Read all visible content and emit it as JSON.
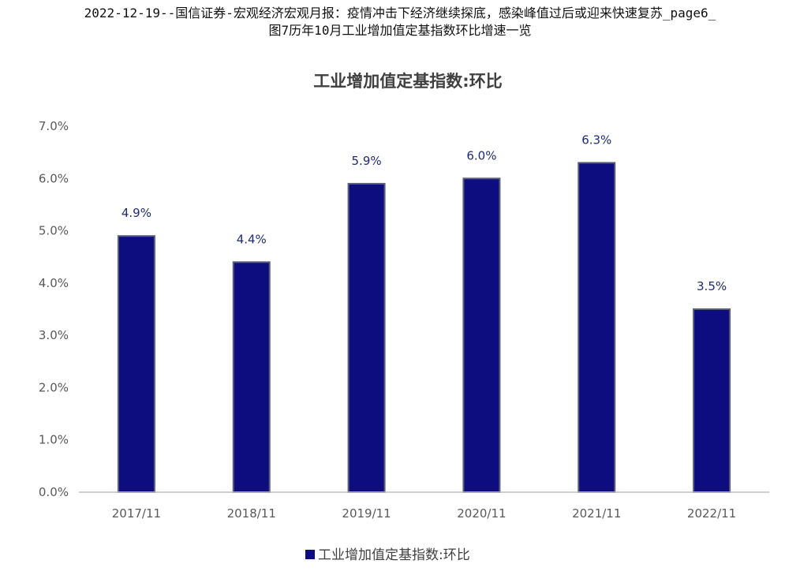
{
  "caption": {
    "line1": "2022-12-19--国信证券-宏观经济宏观月报：疫情冲击下经济继续探底，感染峰值过后或迎来快速复苏_page6_",
    "line2": "图7历年10月工业增加值定基指数环比增速一览"
  },
  "chart_data": {
    "type": "bar",
    "title": "工业增加值定基指数:环比",
    "categories": [
      "2017/11",
      "2018/11",
      "2019/11",
      "2020/11",
      "2021/11",
      "2022/11"
    ],
    "series": [
      {
        "name": "工业增加值定基指数:环比",
        "values": [
          4.9,
          4.4,
          5.9,
          6.0,
          6.3,
          3.5
        ],
        "labels": [
          "4.9%",
          "4.4%",
          "5.9%",
          "6.0%",
          "6.3%",
          "3.5%"
        ]
      }
    ],
    "yticks": [
      "0.0%",
      "1.0%",
      "2.0%",
      "3.0%",
      "4.0%",
      "5.0%",
      "6.0%",
      "7.0%"
    ],
    "ylim": [
      0,
      7
    ],
    "xlabel": "",
    "ylabel": "",
    "grid": false,
    "legend_position": "bottom",
    "colors": {
      "bar": "#0d0d80",
      "bar_edge": "#5a5f7a",
      "data_label": "#1f2a78",
      "axis": "#bfbfbf"
    }
  }
}
